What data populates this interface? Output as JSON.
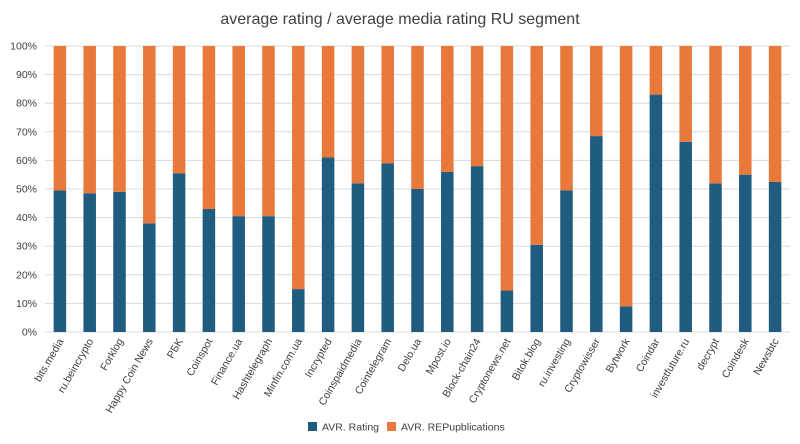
{
  "chart_data": {
    "type": "bar",
    "stacked": true,
    "percent_stacked": true,
    "title": "average rating / average media rating RU segment",
    "xlabel": "",
    "ylabel": "",
    "ylim": [
      0,
      100
    ],
    "yticks": [
      "0%",
      "10%",
      "20%",
      "30%",
      "40%",
      "50%",
      "60%",
      "70%",
      "80%",
      "90%",
      "100%"
    ],
    "grid": true,
    "legend_position": "bottom",
    "categories": [
      "bits.media",
      "ru.beincrypto",
      "Forklog",
      "Happy Coin News",
      "PБK",
      "Coinspot",
      "Finance.ua",
      "Hashtelegraph",
      "Minfin.com.ua",
      "Incrypted",
      "Coinspaidmedia",
      "Cointelegram",
      "Delo.ua",
      "Mpost.io",
      "Block-chain24",
      "Cryptonews.net",
      "Bitok.blog",
      "ru.investing",
      "Cryptowisser",
      "Bytwork",
      "Coindar",
      "investfuture.ru",
      "decrypt",
      "Coindesk",
      "Newsbtc"
    ],
    "series": [
      {
        "name": "AVR. Rating",
        "color": "#1f5c80",
        "values": [
          49.5,
          48.5,
          49,
          38,
          55.5,
          43,
          40.5,
          40.5,
          15,
          61,
          52,
          59,
          50,
          56,
          58,
          14.5,
          30.5,
          49.5,
          68.5,
          9,
          83,
          66.5,
          52,
          55,
          52.5
        ]
      },
      {
        "name": "AVR. REPupblications",
        "color": "#e8793a",
        "values": [
          50.5,
          51.5,
          51,
          62,
          44.5,
          57,
          59.5,
          59.5,
          85,
          39,
          48,
          41,
          50,
          44,
          42,
          85.5,
          69.5,
          50.5,
          31.5,
          91,
          17,
          33.5,
          48,
          45,
          47.5
        ]
      }
    ]
  }
}
